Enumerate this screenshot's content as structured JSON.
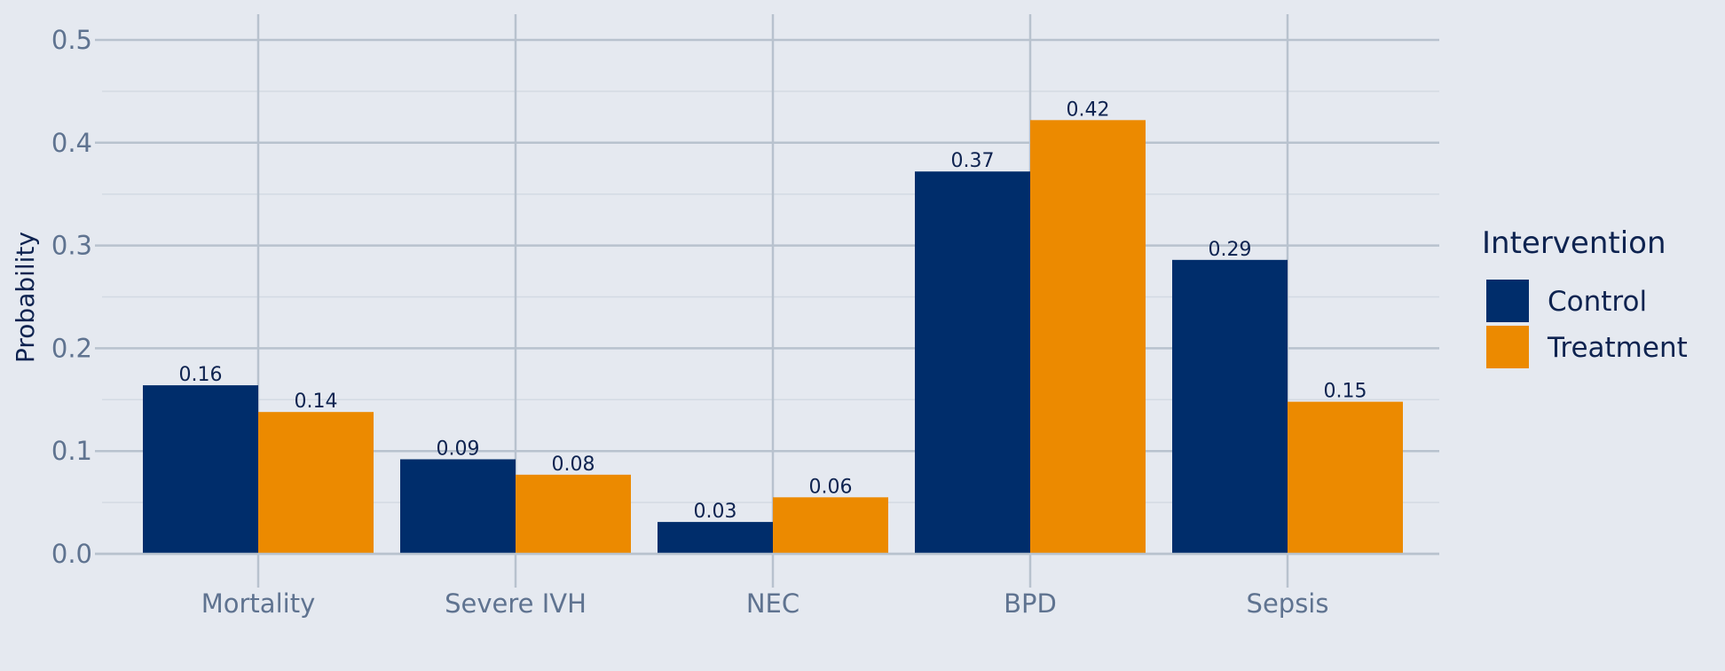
{
  "chart_data": {
    "type": "bar",
    "categories": [
      "Mortality",
      "Severe IVH",
      "NEC",
      "BPD",
      "Sepsis"
    ],
    "series": [
      {
        "name": "Control",
        "values": [
          0.164,
          0.092,
          0.031,
          0.372,
          0.286
        ],
        "labels": [
          "0.16",
          "0.09",
          "0.03",
          "0.37",
          "0.29"
        ],
        "color": "#002d6b"
      },
      {
        "name": "Treatment",
        "values": [
          0.138,
          0.077,
          0.055,
          0.422,
          0.148
        ],
        "labels": [
          "0.14",
          "0.08",
          "0.06",
          "0.42",
          "0.15"
        ],
        "color": "#ec8a00"
      }
    ],
    "ylabel": "Probability",
    "yticks": [
      0.0,
      0.1,
      0.2,
      0.3,
      0.4,
      0.5
    ],
    "ytick_labels": [
      "0.0",
      "0.1",
      "0.2",
      "0.3",
      "0.4",
      "0.5"
    ],
    "ylim": [
      0,
      0.5
    ],
    "grid": true,
    "legend": {
      "title": "Intervention",
      "position": "right"
    },
    "colors": {
      "background": "#e5e9f0",
      "grid": "#b8c2ce"
    }
  }
}
